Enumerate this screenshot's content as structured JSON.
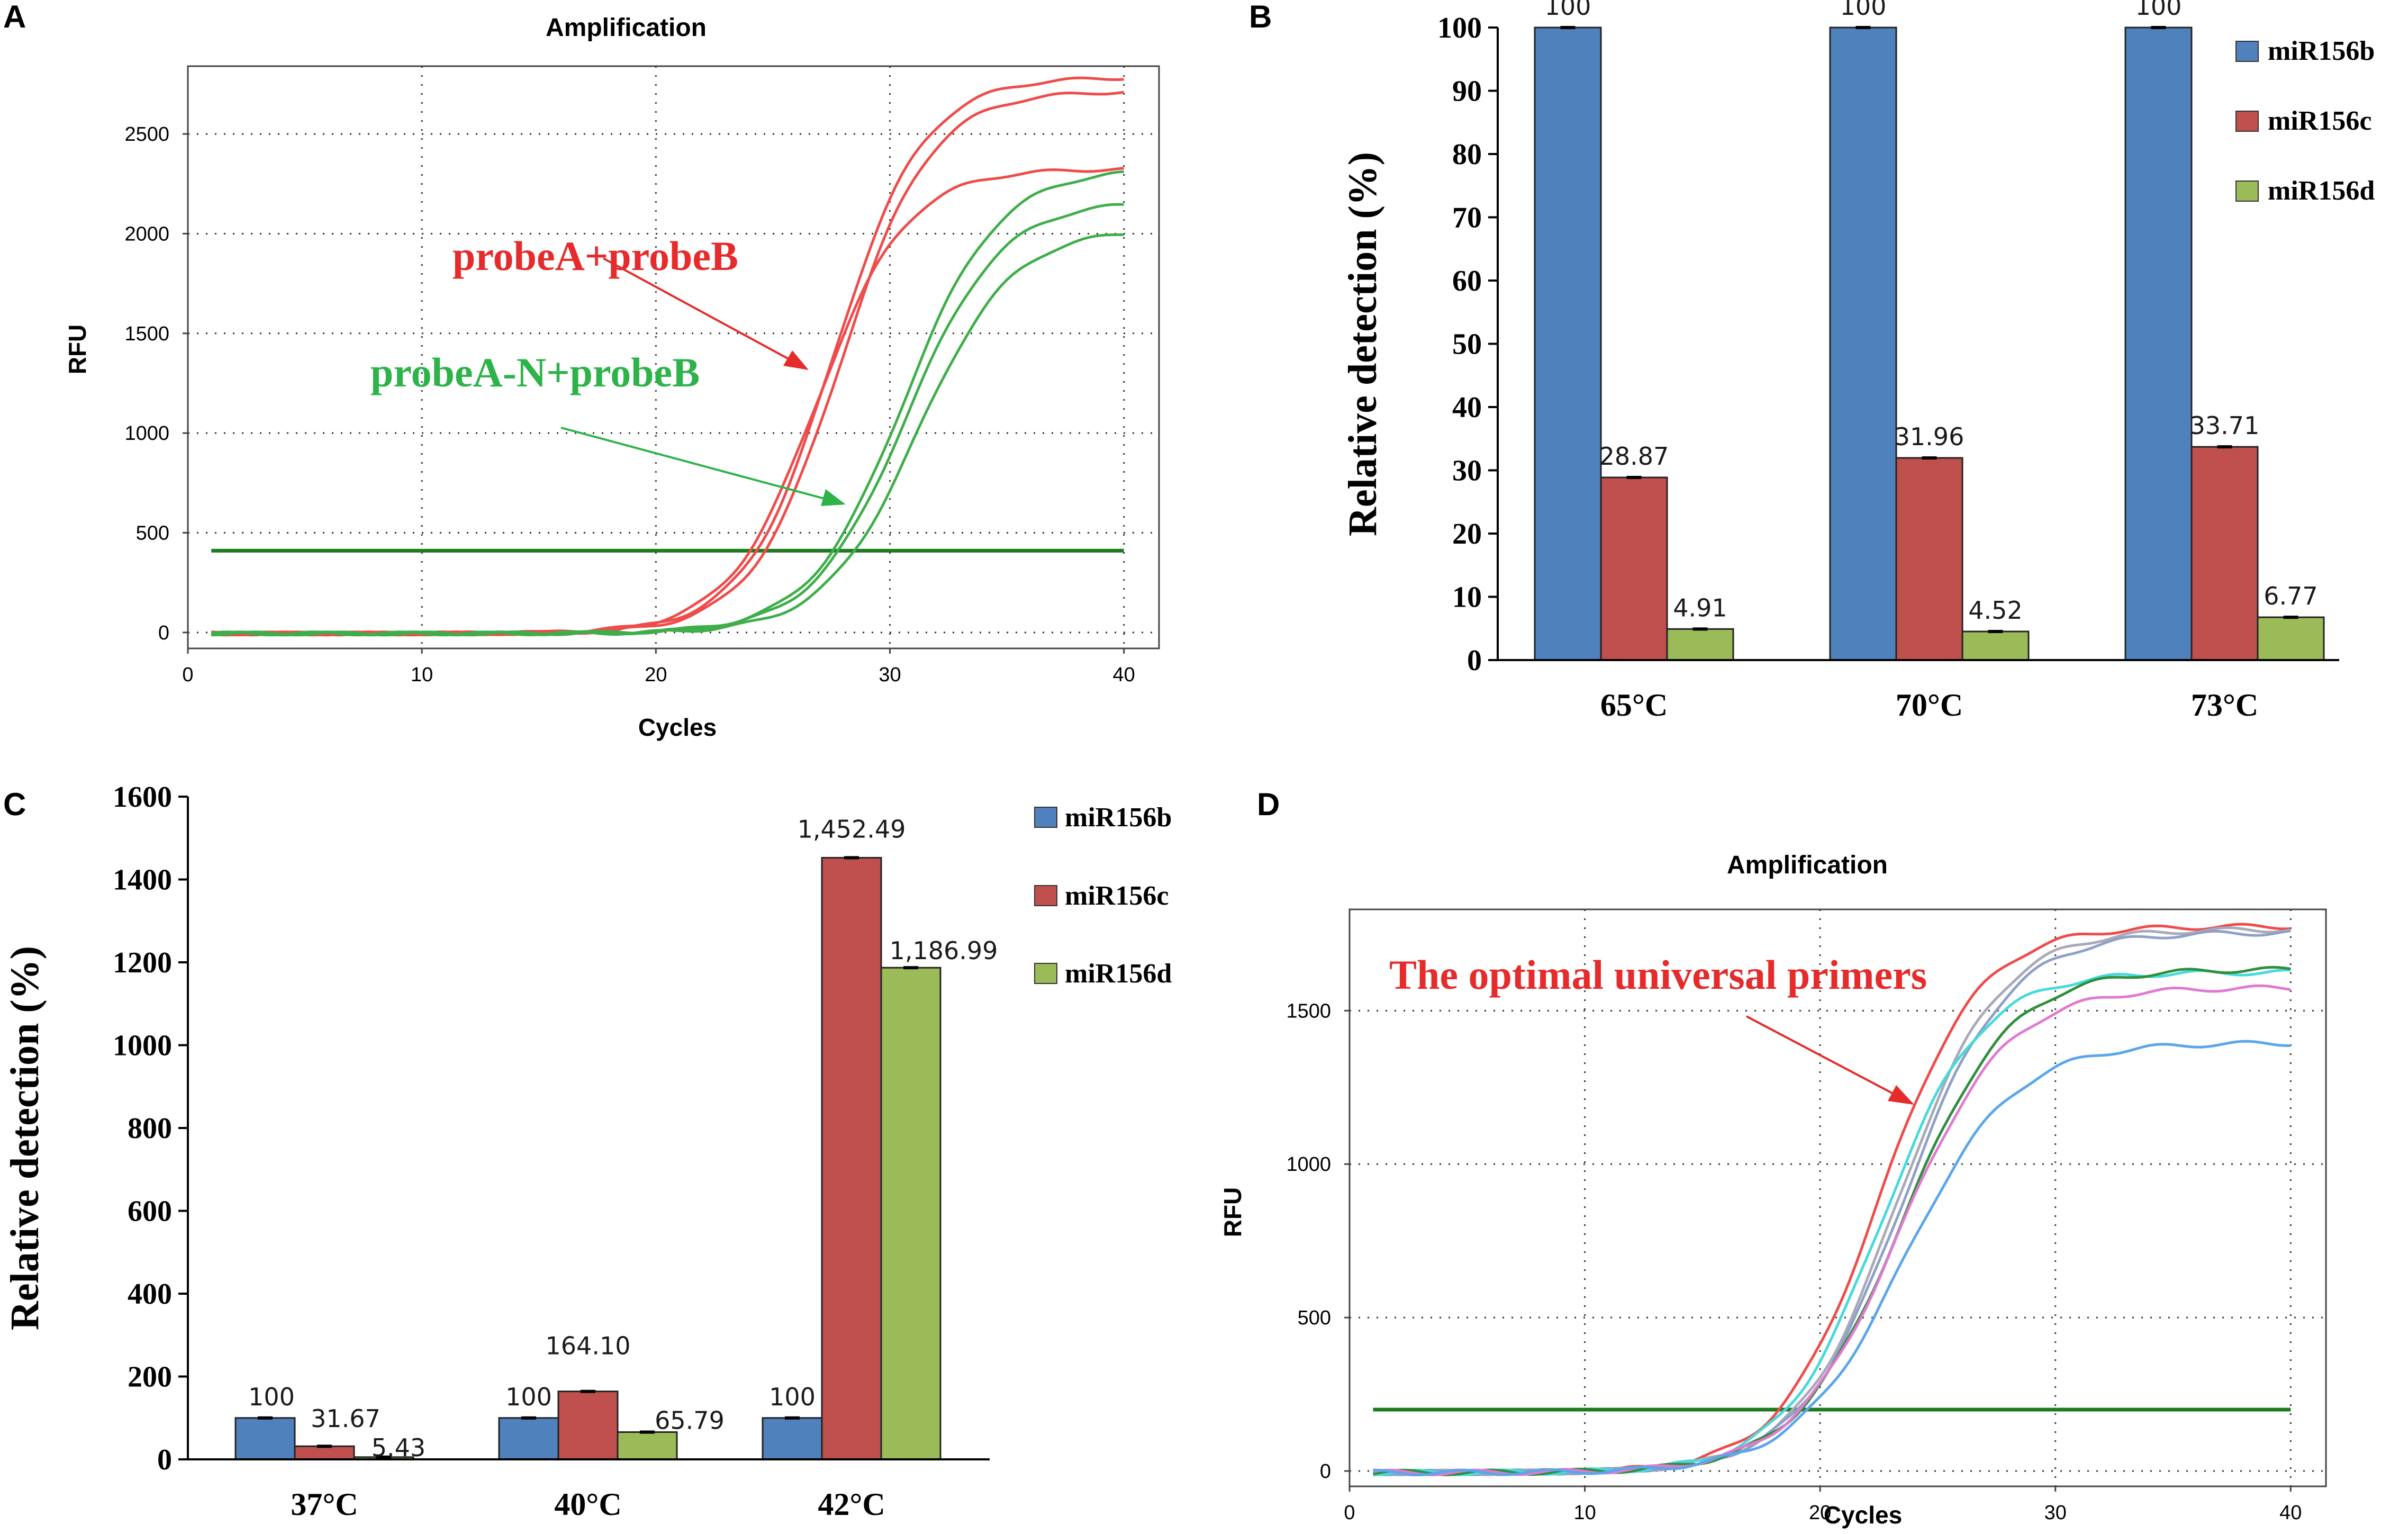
{
  "panels": {
    "A": {
      "letter": "A"
    },
    "B": {
      "letter": "B"
    },
    "C": {
      "letter": "C"
    },
    "D": {
      "letter": "D"
    }
  },
  "chart_data": [
    {
      "id": "A",
      "type": "line",
      "title": "Amplification",
      "xlabel": "Cycles",
      "ylabel": "RFU",
      "xlim": [
        0,
        41.5
      ],
      "ylim": [
        -80,
        2840
      ],
      "xticks": [
        0,
        10,
        20,
        30,
        40
      ],
      "yticks": [
        0,
        500,
        1000,
        1500,
        2000,
        2500
      ],
      "threshold": 410,
      "threshold_color": "#1e7a1e",
      "series": [
        {
          "name": "probeA+probeB 1",
          "color": "#ef4b4b",
          "plateau": 2790,
          "mid": 27.6,
          "slope": 1.9
        },
        {
          "name": "probeA+probeB 2",
          "color": "#ef4b4b",
          "plateau": 2720,
          "mid": 27.9,
          "slope": 1.9
        },
        {
          "name": "probeA+probeB 3",
          "color": "#ef4b4b",
          "plateau": 2330,
          "mid": 26.9,
          "slope": 1.9
        },
        {
          "name": "probeA-N+probeB 1",
          "color": "#3fae4a",
          "plateau": 2330,
          "mid": 30.6,
          "slope": 2.0
        },
        {
          "name": "probeA-N+probeB 2",
          "color": "#3fae4a",
          "plateau": 2170,
          "mid": 30.7,
          "slope": 2.0
        },
        {
          "name": "probeA-N+probeB 3",
          "color": "#3fae4a",
          "plateau": 2030,
          "mid": 31.2,
          "slope": 2.0
        }
      ],
      "annotations": [
        {
          "text": "probeA+probeB",
          "color": "#e52b2b"
        },
        {
          "text": "probeA-N+probeB",
          "color": "#2db34a"
        }
      ]
    },
    {
      "id": "B",
      "type": "bar",
      "categories": [
        "65°C",
        "70°C",
        "73°C"
      ],
      "series": [
        {
          "name": "miR156b",
          "color": "#4f81bd",
          "values": [
            100,
            100,
            100
          ],
          "labels": [
            "100",
            "100",
            "100"
          ]
        },
        {
          "name": "miR156c",
          "color": "#c0504d",
          "values": [
            28.87,
            31.96,
            33.71
          ],
          "labels": [
            "28.87",
            "31.96",
            "33.71"
          ]
        },
        {
          "name": "miR156d",
          "color": "#9bbb59",
          "values": [
            4.91,
            4.52,
            6.77
          ],
          "labels": [
            "4.91",
            "4.52",
            "6.77"
          ]
        }
      ],
      "ylabel": "Relative detection  (%)",
      "ylim": [
        0,
        100
      ],
      "yticks": [
        0,
        10,
        20,
        30,
        40,
        50,
        60,
        70,
        80,
        90,
        100
      ]
    },
    {
      "id": "C",
      "type": "bar",
      "categories": [
        "37°C",
        "40°C",
        "42°C"
      ],
      "series": [
        {
          "name": "miR156b",
          "color": "#4f81bd",
          "values": [
            100,
            100,
            100
          ],
          "labels": [
            "100",
            "100",
            "100"
          ]
        },
        {
          "name": "miR156c",
          "color": "#c0504d",
          "values": [
            31.67,
            164.1,
            1452.49
          ],
          "labels": [
            "31.67",
            "164.10",
            "1,452.49"
          ]
        },
        {
          "name": "miR156d",
          "color": "#9bbb59",
          "values": [
            5.43,
            65.79,
            1186.99
          ],
          "labels": [
            "5.43",
            "65.79",
            "1,186.99"
          ]
        }
      ],
      "ylabel": "Relative detection  (%)",
      "ylim": [
        0,
        1600
      ],
      "yticks": [
        0,
        200,
        400,
        600,
        800,
        1000,
        1200,
        1400,
        1600
      ],
      "legend_labels": [
        "miR156b",
        "miR156c",
        "miR156d"
      ]
    },
    {
      "id": "D",
      "type": "line",
      "title": "Amplification",
      "xlabel": "Cycles",
      "ylabel": "RFU",
      "xlim": [
        0,
        41.5
      ],
      "ylim": [
        -50,
        1830
      ],
      "xticks": [
        0,
        10,
        20,
        30,
        40
      ],
      "yticks": [
        0,
        500,
        1000,
        1500
      ],
      "threshold": 200,
      "threshold_color": "#1e7a1e",
      "series": [
        {
          "name": "red",
          "color": "#ef4b4b",
          "plateau": 1780,
          "mid": 22.5,
          "slope": 2.1
        },
        {
          "name": "gray",
          "color": "#a9a9b8",
          "plateau": 1770,
          "mid": 23.3,
          "slope": 2.15
        },
        {
          "name": "blue-gray",
          "color": "#8fa0c8",
          "plateau": 1760,
          "mid": 23.5,
          "slope": 2.2
        },
        {
          "name": "cyan",
          "color": "#47d9dc",
          "plateau": 1630,
          "mid": 22.6,
          "slope": 2.1
        },
        {
          "name": "green",
          "color": "#2f8f3c",
          "plateau": 1640,
          "mid": 23.5,
          "slope": 2.25
        },
        {
          "name": "pink",
          "color": "#e07ad0",
          "plateau": 1580,
          "mid": 23.4,
          "slope": 2.25
        },
        {
          "name": "light-blue",
          "color": "#5aa6ea",
          "plateau": 1400,
          "mid": 23.6,
          "slope": 2.3
        }
      ],
      "annotations": [
        {
          "text": "The optimal universal primers",
          "color": "#e52b2b"
        }
      ]
    }
  ]
}
